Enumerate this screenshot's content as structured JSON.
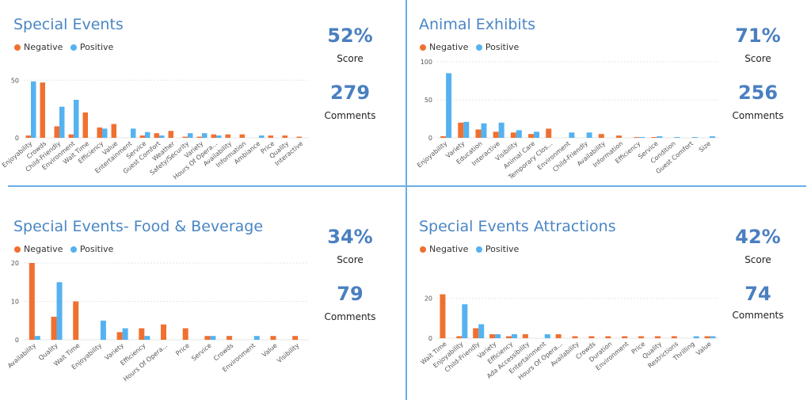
{
  "colors": {
    "negative": "#f07030",
    "positive": "#55b2f0",
    "accent": "#4a86c5",
    "grid": "#e6e6e6"
  },
  "legend": {
    "negative": "Negative",
    "positive": "Positive"
  },
  "panels": [
    {
      "title": "Special Events",
      "score_value": "52%",
      "score_label": "Score",
      "comments_value": "279",
      "comments_label": "Comments",
      "chart_data": {
        "type": "bar",
        "title": "Special Events",
        "categories": [
          "Enjoyability",
          "Crowds",
          "Child-Friendly",
          "Environment",
          "Wait Time",
          "Efficiency",
          "Value",
          "Entertainment",
          "Service",
          "Guest Comfort",
          "Weather",
          "Safety/Security",
          "Variety",
          "Hours Of Opera...",
          "Availability",
          "Information",
          "Ambiance",
          "Price",
          "Quality",
          "Interactive"
        ],
        "series": [
          {
            "name": "Negative",
            "values": [
              2,
              48,
              10,
              3,
              22,
              9,
              12,
              0,
              2,
              4,
              6,
              1,
              1,
              3,
              3,
              3,
              0,
              2,
              2,
              1
            ]
          },
          {
            "name": "Positive",
            "values": [
              49,
              0,
              27,
              33,
              0,
              8,
              0,
              8,
              5,
              2,
              0,
              4,
              4,
              2,
              0,
              0,
              2,
              0,
              0,
              0
            ]
          }
        ],
        "ylim": [
          0,
          55
        ],
        "yticks": [
          0,
          50
        ],
        "grid": true,
        "legend_position": "top-left"
      }
    },
    {
      "title": "Animal Exhibits",
      "score_value": "71%",
      "score_label": "Score",
      "comments_value": "256",
      "comments_label": "Comments",
      "chart_data": {
        "type": "bar",
        "title": "Animal Exhibits",
        "categories": [
          "Enjoyability",
          "Variety",
          "Education",
          "Interactive",
          "Visibility",
          "Animal Care",
          "Temporary Clos...",
          "Environment",
          "Child-Friendly",
          "Availability",
          "Information",
          "Efficiency",
          "Service",
          "Condition",
          "Guest Comfort",
          "Size"
        ],
        "series": [
          {
            "name": "Negative",
            "values": [
              2,
              20,
              11,
              8,
              7,
              5,
              12,
              0,
              0,
              5,
              3,
              1,
              1,
              0,
              0,
              0
            ]
          },
          {
            "name": "Positive",
            "values": [
              85,
              21,
              19,
              20,
              10,
              8,
              0,
              7,
              7,
              0,
              0,
              1,
              2,
              1,
              1,
              2
            ]
          }
        ],
        "ylim": [
          0,
          100
        ],
        "yticks": [
          0,
          50,
          100
        ],
        "grid": true,
        "legend_position": "top-left"
      }
    },
    {
      "title": "Special Events- Food & Beverage",
      "score_value": "34%",
      "score_label": "Score",
      "comments_value": "79",
      "comments_label": "Comments",
      "chart_data": {
        "type": "bar",
        "title": "Special Events- Food & Beverage",
        "categories": [
          "Availability",
          "Quality",
          "Wait Time",
          "Enjoyability",
          "Variety",
          "Efficiency",
          "Hours Of Opera...",
          "Price",
          "Service",
          "Crowds",
          "Environment",
          "Value",
          "Visibility"
        ],
        "series": [
          {
            "name": "Negative",
            "values": [
              20,
              6,
              10,
              0,
              2,
              3,
              4,
              3,
              1,
              1,
              0,
              1,
              1
            ]
          },
          {
            "name": "Positive",
            "values": [
              1,
              15,
              0,
              5,
              3,
              1,
              0,
              0,
              1,
              0,
              1,
              0,
              0
            ]
          }
        ],
        "ylim": [
          0,
          20
        ],
        "yticks": [
          0,
          10,
          20
        ],
        "grid": true,
        "legend_position": "top-left"
      }
    },
    {
      "title": "Special Events Attractions",
      "score_value": "42%",
      "score_label": "Score",
      "comments_value": "74",
      "comments_label": "Comments",
      "chart_data": {
        "type": "bar",
        "title": "Special Events Attractions",
        "categories": [
          "Wait Time",
          "Enjoyability",
          "Child-Friendly",
          "Variety",
          "Efficiency",
          "Ada Accessibility",
          "Entertainment",
          "Hours Of Opera...",
          "Availability",
          "Crowds",
          "Duration",
          "Environment",
          "Price",
          "Quality",
          "Restrictions",
          "Thrilling",
          "Value"
        ],
        "series": [
          {
            "name": "Negative",
            "values": [
              22,
              1,
              5,
              2,
              1,
              2,
              0,
              2,
              1,
              1,
              1,
              1,
              1,
              1,
              1,
              0,
              1
            ]
          },
          {
            "name": "Positive",
            "values": [
              0,
              17,
              7,
              2,
              2,
              0,
              2,
              0,
              0,
              0,
              0,
              0,
              0,
              0,
              0,
              1,
              1
            ]
          }
        ],
        "ylim": [
          0,
          25
        ],
        "yticks": [
          0,
          20
        ],
        "grid": true,
        "legend_position": "top-left"
      }
    }
  ]
}
